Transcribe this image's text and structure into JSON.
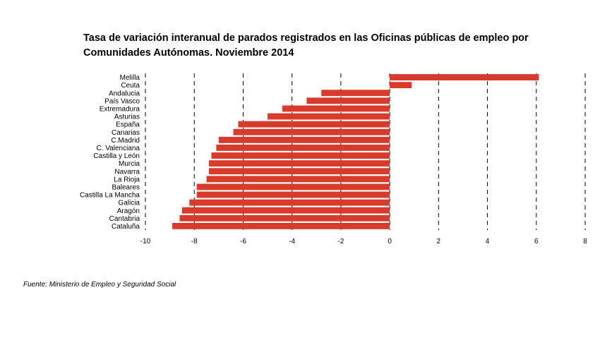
{
  "chart_data": {
    "type": "bar",
    "orientation": "horizontal",
    "title_lines": [
      "Tasa de variación interanual de parados registrados en las Oficinas públicas de empleo por",
      "Comunidades Autónomas.  Noviembre 2014"
    ],
    "categories": [
      "Melilla",
      "Ceuta",
      "Andalucia",
      "País Vasco",
      "Extremadura",
      "Asturias",
      "España",
      "Canarias",
      "C.Madrid",
      "C. Valenciana",
      "Castilla y León",
      "Murcia",
      "Navarra",
      "La Rioja",
      "Baleares",
      "Castilla La Mancha",
      "Galicia",
      "Aragón",
      "Cantabria",
      "Cataluña"
    ],
    "values": [
      6.1,
      0.9,
      -2.8,
      -3.4,
      -4.4,
      -5.0,
      -6.2,
      -6.4,
      -7.0,
      -7.1,
      -7.3,
      -7.4,
      -7.4,
      -7.5,
      -7.9,
      -7.9,
      -8.2,
      -8.5,
      -8.6,
      -8.9
    ],
    "xlim": [
      -10,
      8
    ],
    "xticks": [
      "-10",
      "-8",
      "-6",
      "-4",
      "-2",
      "0",
      "2",
      "4",
      "6",
      "8"
    ],
    "xtick_values": [
      -10,
      -8,
      -6,
      -4,
      -2,
      0,
      2,
      4,
      6,
      8
    ],
    "grid": "dashed vertical lines at even ticks",
    "legend": "none",
    "bar_color": "#d83a2c"
  },
  "source_note": "Fuente: Ministerio de Empleo y Seguridad Social"
}
